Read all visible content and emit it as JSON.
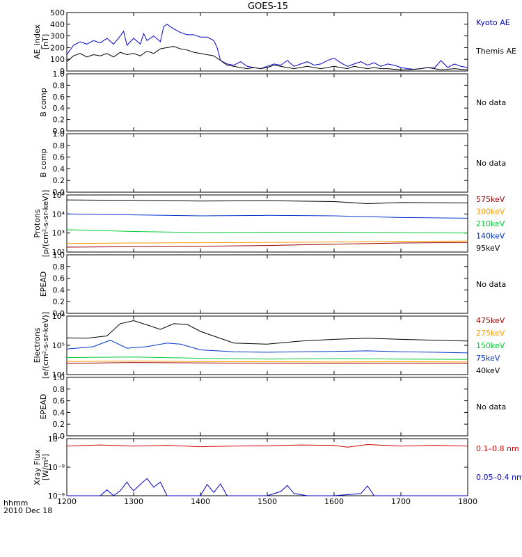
{
  "chart_data": {
    "type": "line",
    "title": "GOES-15",
    "x_axis": {
      "label_line1": "hhmm",
      "label_line2": "2010 Dec 18",
      "range": [
        1200,
        1800
      ],
      "ticks": [
        "1200",
        "1300",
        "1400",
        "1500",
        "1600",
        "1700",
        "1800"
      ]
    },
    "panels": [
      {
        "id": "ae",
        "ylabel_line1": "AE_index",
        "ylabel_line2": "[nT]",
        "scale": "linear",
        "ylim": [
          0,
          500
        ],
        "ticks": [
          "0",
          "100",
          "200",
          "300",
          "400",
          "500"
        ],
        "series": [
          {
            "name": "Kyoto AE",
            "color": "#0000cc",
            "x": [
              1200,
              1210,
              1220,
              1230,
              1240,
              1250,
              1260,
              1270,
              1280,
              1285,
              1290,
              1300,
              1310,
              1315,
              1320,
              1330,
              1340,
              1345,
              1350,
              1360,
              1370,
              1380,
              1390,
              1400,
              1410,
              1420,
              1425,
              1430,
              1440,
              1450,
              1460,
              1470,
              1480,
              1490,
              1500,
              1510,
              1520,
              1530,
              1540,
              1550,
              1560,
              1570,
              1580,
              1590,
              1600,
              1610,
              1620,
              1630,
              1640,
              1650,
              1660,
              1670,
              1680,
              1690,
              1700,
              1710,
              1720,
              1730,
              1740,
              1750,
              1760,
              1770,
              1780,
              1790,
              1800
            ],
            "y": [
              140,
              220,
              250,
              230,
              260,
              240,
              280,
              230,
              300,
              340,
              220,
              280,
              230,
              320,
              260,
              300,
              250,
              380,
              400,
              360,
              330,
              310,
              310,
              290,
              290,
              260,
              200,
              90,
              60,
              50,
              80,
              40,
              30,
              20,
              40,
              60,
              50,
              90,
              40,
              60,
              80,
              50,
              60,
              90,
              110,
              70,
              40,
              60,
              80,
              50,
              70,
              40,
              60,
              50,
              30,
              20,
              15,
              20,
              30,
              25,
              90,
              30,
              60,
              40,
              30
            ]
          },
          {
            "name": "Themis AE",
            "color": "#000000",
            "x": [
              1200,
              1210,
              1220,
              1230,
              1240,
              1250,
              1260,
              1270,
              1280,
              1290,
              1300,
              1310,
              1320,
              1330,
              1340,
              1350,
              1360,
              1370,
              1380,
              1390,
              1400,
              1410,
              1420,
              1430,
              1440,
              1450,
              1460,
              1470,
              1480,
              1490,
              1500,
              1510,
              1520,
              1530,
              1540,
              1550,
              1560,
              1570,
              1580,
              1590,
              1600,
              1610,
              1620,
              1630,
              1640,
              1650,
              1660,
              1670,
              1680,
              1690,
              1700,
              1710,
              1720,
              1730,
              1740,
              1750,
              1760,
              1770,
              1780,
              1790,
              1800
            ],
            "y": [
              80,
              130,
              150,
              120,
              140,
              130,
              150,
              120,
              160,
              140,
              150,
              130,
              170,
              150,
              190,
              200,
              210,
              190,
              180,
              160,
              150,
              140,
              130,
              90,
              50,
              40,
              30,
              20,
              30,
              20,
              30,
              50,
              40,
              30,
              20,
              30,
              40,
              30,
              20,
              30,
              40,
              30,
              20,
              40,
              30,
              20,
              30,
              20,
              20,
              15,
              10,
              10,
              15,
              20,
              30,
              20,
              10,
              15,
              20,
              15,
              10
            ]
          }
        ]
      },
      {
        "id": "bcomp1",
        "ylabel_line1": "B comp",
        "ylabel_line2": "",
        "scale": "linear",
        "ylim": [
          0,
          1
        ],
        "ticks": [
          "0.0",
          "0.2",
          "0.4",
          "0.6",
          "0.8",
          "1.0"
        ],
        "series": [],
        "note": "No data"
      },
      {
        "id": "bcomp2",
        "ylabel_line1": "B comp",
        "ylabel_line2": "",
        "scale": "linear",
        "ylim": [
          0,
          1
        ],
        "ticks": [
          "0.0",
          "0.2",
          "0.4",
          "0.6",
          "0.8",
          "1.0"
        ],
        "series": [],
        "note": "No data"
      },
      {
        "id": "protons",
        "ylabel_line1": "Protons",
        "ylabel_line2": "[p/(cm²-s-sr-keV)]",
        "scale": "log",
        "ylim": [
          100,
          100000
        ],
        "ticks": [
          "10²",
          "10³",
          "10⁴",
          "10⁵"
        ],
        "series": [
          {
            "name": "575keV",
            "color": "#990000",
            "x": [
              1200,
              1300,
              1400,
              1500,
              1550,
              1600,
              1700,
              1800
            ],
            "y": [
              180,
              190,
              200,
              220,
              240,
              260,
              300,
              320
            ]
          },
          {
            "name": "300keV",
            "color": "#ff9900",
            "x": [
              1200,
              1300,
              1400,
              1500,
              1600,
              1700,
              1800
            ],
            "y": [
              280,
              300,
              310,
              320,
              340,
              360,
              380
            ]
          },
          {
            "name": "210keV",
            "color": "#00cc33",
            "x": [
              1200,
              1300,
              1400,
              1500,
              1600,
              1700,
              1800
            ],
            "y": [
              1500,
              1200,
              1050,
              1100,
              1100,
              1050,
              1000
            ]
          },
          {
            "name": "140keV",
            "color": "#0033cc",
            "x": [
              1200,
              1300,
              1400,
              1500,
              1600,
              1700,
              1800
            ],
            "y": [
              10000,
              9000,
              8000,
              8500,
              8000,
              6500,
              6000
            ]
          },
          {
            "name": "95keV",
            "color": "#000000",
            "x": [
              1200,
              1300,
              1400,
              1500,
              1600,
              1650,
              1700,
              1800
            ],
            "y": [
              55000,
              52000,
              48000,
              50000,
              45000,
              35000,
              40000,
              38000
            ]
          }
        ]
      },
      {
        "id": "epead1",
        "ylabel_line1": "EPEAD",
        "ylabel_line2": "",
        "scale": "linear",
        "ylim": [
          0,
          1
        ],
        "ticks": [
          "0.0",
          "0.2",
          "0.4",
          "0.6",
          "0.8",
          "1.0"
        ],
        "series": [],
        "note": "No data"
      },
      {
        "id": "electrons",
        "ylabel_line1": "Electrons",
        "ylabel_line2": "[e/(cm²-s-sr-keV)]",
        "scale": "log",
        "ylim": [
          10000,
          1000000
        ],
        "ticks": [
          "10⁴",
          "10⁵",
          "10⁶"
        ],
        "series": [
          {
            "name": "475keV",
            "color": "#990000",
            "x": [
              1200,
              1300,
              1400,
              1500,
              1600,
              1700,
              1800
            ],
            "y": [
              24000,
              26000,
              25000,
              24500,
              24000,
              24500,
              24000
            ]
          },
          {
            "name": "275keV",
            "color": "#ff9900",
            "x": [
              1200,
              1300,
              1400,
              1500,
              1600,
              1700,
              1800
            ],
            "y": [
              28000,
              29000,
              28000,
              27500,
              27000,
              27500,
              27000
            ]
          },
          {
            "name": "150keV",
            "color": "#00cc33",
            "x": [
              1200,
              1300,
              1400,
              1500,
              1600,
              1700,
              1800
            ],
            "y": [
              38000,
              40000,
              36000,
              34000,
              35000,
              34000,
              33000
            ]
          },
          {
            "name": "75keV",
            "color": "#0033cc",
            "x": [
              1200,
              1240,
              1265,
              1290,
              1320,
              1350,
              1370,
              1400,
              1450,
              1500,
              1550,
              1600,
              1650,
              1700,
              1750,
              1800
            ],
            "y": [
              75000,
              90000,
              150000,
              80000,
              90000,
              120000,
              110000,
              70000,
              60000,
              58000,
              60000,
              62000,
              65000,
              60000,
              58000,
              55000
            ]
          },
          {
            "name": "40keV",
            "color": "#000000",
            "x": [
              1200,
              1230,
              1260,
              1280,
              1300,
              1320,
              1340,
              1360,
              1380,
              1400,
              1450,
              1500,
              1550,
              1600,
              1650,
              1700,
              1750,
              1800
            ],
            "y": [
              180000,
              175000,
              210000,
              550000,
              700000,
              500000,
              350000,
              550000,
              520000,
              300000,
              120000,
              110000,
              140000,
              160000,
              175000,
              160000,
              150000,
              140000
            ]
          }
        ]
      },
      {
        "id": "epead2",
        "ylabel_line1": "EPEAD",
        "ylabel_line2": "",
        "scale": "linear",
        "ylim": [
          0,
          1
        ],
        "ticks": [
          "0.0",
          "0.2",
          "0.4",
          "0.6",
          "0.8",
          "1.0"
        ],
        "series": [],
        "note": "No data"
      },
      {
        "id": "xray",
        "ylabel_line1": "Xray Flux",
        "ylabel_line2": "[W/m²]",
        "scale": "log",
        "ylim": [
          1e-09,
          1e-07
        ],
        "ticks": [
          "10⁻⁹",
          "10⁻⁸",
          "10⁻⁷"
        ],
        "series": [
          {
            "name": "0.1–0.8 nm",
            "color": "#cc0000",
            "x": [
              1200,
              1250,
              1300,
              1350,
              1400,
              1450,
              1500,
              1550,
              1600,
              1620,
              1650,
              1700,
              1750,
              1800
            ],
            "y": [
              5.5e-08,
              6e-08,
              5.5e-08,
              5.8e-08,
              5.2e-08,
              5.5e-08,
              5.6e-08,
              6e-08,
              5.8e-08,
              5e-08,
              6.2e-08,
              5.5e-08,
              5.8e-08,
              5.5e-08
            ]
          },
          {
            "name": "0.05–0.4 nm",
            "color": "#0000cc",
            "x": [
              1200,
              1250,
              1260,
              1270,
              1280,
              1290,
              1295,
              1300,
              1310,
              1320,
              1330,
              1340,
              1350,
              1400,
              1410,
              1420,
              1430,
              1440,
              1500,
              1520,
              1530,
              1540,
              1560,
              1600,
              1640,
              1650,
              1660,
              1700,
              1750,
              1800
            ],
            "y": [
              1e-09,
              1e-09,
              1.6e-09,
              1e-09,
              1.5e-09,
              3e-09,
              2e-09,
              1.5e-09,
              2.5e-09,
              4e-09,
              2e-09,
              3e-09,
              1e-09,
              1e-09,
              2.5e-09,
              1.3e-09,
              2.6e-09,
              1e-09,
              1e-09,
              1.4e-09,
              2.3e-09,
              1.2e-09,
              1e-09,
              1e-09,
              1.2e-09,
              2.2e-09,
              1e-09,
              1e-09,
              1e-09,
              1e-09
            ]
          }
        ]
      }
    ]
  }
}
